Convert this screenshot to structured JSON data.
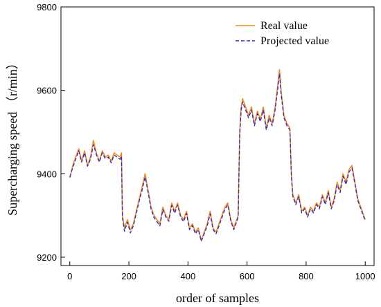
{
  "chart_data": {
    "type": "line",
    "title": "",
    "xlabel": "order of samples",
    "ylabel": "Supercharging speed （r/min）",
    "xlim": [
      -30,
      1030
    ],
    "ylim": [
      9180,
      9800
    ],
    "xticks": [
      0,
      200,
      400,
      600,
      800,
      1000
    ],
    "yticks": [
      9200,
      9400,
      9600,
      9800
    ],
    "grid": false,
    "legend_position": "top-right",
    "series": [
      {
        "name": "Real value",
        "color": "#f28a16",
        "style": "solid",
        "points": [
          [
            0,
            9390
          ],
          [
            10,
            9420
          ],
          [
            20,
            9440
          ],
          [
            30,
            9460
          ],
          [
            40,
            9430
          ],
          [
            50,
            9455
          ],
          [
            60,
            9420
          ],
          [
            70,
            9440
          ],
          [
            80,
            9480
          ],
          [
            90,
            9450
          ],
          [
            100,
            9430
          ],
          [
            110,
            9455
          ],
          [
            120,
            9440
          ],
          [
            130,
            9445
          ],
          [
            140,
            9430
          ],
          [
            150,
            9450
          ],
          [
            160,
            9445
          ],
          [
            170,
            9440
          ],
          [
            175,
            9450
          ],
          [
            178,
            9300
          ],
          [
            185,
            9270
          ],
          [
            195,
            9290
          ],
          [
            205,
            9265
          ],
          [
            215,
            9280
          ],
          [
            225,
            9310
          ],
          [
            235,
            9340
          ],
          [
            245,
            9370
          ],
          [
            255,
            9400
          ],
          [
            265,
            9360
          ],
          [
            275,
            9320
          ],
          [
            285,
            9300
          ],
          [
            295,
            9290
          ],
          [
            305,
            9280
          ],
          [
            315,
            9320
          ],
          [
            325,
            9300
          ],
          [
            335,
            9290
          ],
          [
            345,
            9330
          ],
          [
            355,
            9310
          ],
          [
            365,
            9330
          ],
          [
            375,
            9300
          ],
          [
            385,
            9290
          ],
          [
            395,
            9310
          ],
          [
            405,
            9270
          ],
          [
            415,
            9280
          ],
          [
            425,
            9260
          ],
          [
            435,
            9270
          ],
          [
            445,
            9240
          ],
          [
            455,
            9260
          ],
          [
            465,
            9280
          ],
          [
            475,
            9310
          ],
          [
            485,
            9270
          ],
          [
            495,
            9260
          ],
          [
            505,
            9280
          ],
          [
            515,
            9300
          ],
          [
            525,
            9320
          ],
          [
            535,
            9330
          ],
          [
            545,
            9290
          ],
          [
            555,
            9270
          ],
          [
            565,
            9290
          ],
          [
            570,
            9300
          ],
          [
            575,
            9500
          ],
          [
            580,
            9560
          ],
          [
            585,
            9580
          ],
          [
            595,
            9560
          ],
          [
            605,
            9540
          ],
          [
            615,
            9560
          ],
          [
            625,
            9520
          ],
          [
            635,
            9550
          ],
          [
            645,
            9530
          ],
          [
            655,
            9560
          ],
          [
            665,
            9510
          ],
          [
            675,
            9540
          ],
          [
            685,
            9520
          ],
          [
            695,
            9560
          ],
          [
            705,
            9620
          ],
          [
            710,
            9650
          ],
          [
            715,
            9600
          ],
          [
            725,
            9540
          ],
          [
            735,
            9520
          ],
          [
            745,
            9510
          ],
          [
            750,
            9400
          ],
          [
            755,
            9350
          ],
          [
            765,
            9330
          ],
          [
            775,
            9350
          ],
          [
            785,
            9310
          ],
          [
            795,
            9320
          ],
          [
            805,
            9300
          ],
          [
            815,
            9320
          ],
          [
            825,
            9310
          ],
          [
            835,
            9330
          ],
          [
            845,
            9320
          ],
          [
            855,
            9350
          ],
          [
            865,
            9330
          ],
          [
            875,
            9360
          ],
          [
            885,
            9320
          ],
          [
            895,
            9340
          ],
          [
            905,
            9380
          ],
          [
            915,
            9360
          ],
          [
            925,
            9400
          ],
          [
            935,
            9380
          ],
          [
            945,
            9410
          ],
          [
            955,
            9420
          ],
          [
            965,
            9380
          ],
          [
            975,
            9340
          ],
          [
            985,
            9320
          ],
          [
            995,
            9300
          ],
          [
            1000,
            9290
          ]
        ]
      },
      {
        "name": "Projected value",
        "color": "#2323d8",
        "style": "dashed",
        "points": [
          [
            0,
            9392
          ],
          [
            10,
            9415
          ],
          [
            20,
            9435
          ],
          [
            30,
            9455
          ],
          [
            40,
            9428
          ],
          [
            50,
            9450
          ],
          [
            60,
            9418
          ],
          [
            70,
            9435
          ],
          [
            80,
            9470
          ],
          [
            90,
            9445
          ],
          [
            100,
            9428
          ],
          [
            110,
            9450
          ],
          [
            120,
            9436
          ],
          [
            130,
            9440
          ],
          [
            140,
            9426
          ],
          [
            150,
            9445
          ],
          [
            160,
            9440
          ],
          [
            170,
            9435
          ],
          [
            175,
            9442
          ],
          [
            178,
            9295
          ],
          [
            185,
            9262
          ],
          [
            195,
            9284
          ],
          [
            205,
            9258
          ],
          [
            215,
            9275
          ],
          [
            225,
            9305
          ],
          [
            235,
            9335
          ],
          [
            245,
            9362
          ],
          [
            255,
            9392
          ],
          [
            265,
            9355
          ],
          [
            275,
            9315
          ],
          [
            285,
            9295
          ],
          [
            295,
            9285
          ],
          [
            305,
            9275
          ],
          [
            315,
            9314
          ],
          [
            325,
            9296
          ],
          [
            335,
            9286
          ],
          [
            345,
            9324
          ],
          [
            355,
            9305
          ],
          [
            365,
            9325
          ],
          [
            375,
            9296
          ],
          [
            385,
            9285
          ],
          [
            395,
            9305
          ],
          [
            405,
            9266
          ],
          [
            415,
            9276
          ],
          [
            425,
            9256
          ],
          [
            435,
            9266
          ],
          [
            445,
            9238
          ],
          [
            455,
            9256
          ],
          [
            465,
            9275
          ],
          [
            475,
            9304
          ],
          [
            485,
            9266
          ],
          [
            495,
            9256
          ],
          [
            505,
            9275
          ],
          [
            515,
            9295
          ],
          [
            525,
            9315
          ],
          [
            535,
            9325
          ],
          [
            545,
            9286
          ],
          [
            555,
            9266
          ],
          [
            565,
            9285
          ],
          [
            570,
            9296
          ],
          [
            575,
            9490
          ],
          [
            580,
            9552
          ],
          [
            585,
            9572
          ],
          [
            595,
            9553
          ],
          [
            605,
            9534
          ],
          [
            615,
            9553
          ],
          [
            625,
            9515
          ],
          [
            635,
            9544
          ],
          [
            645,
            9525
          ],
          [
            655,
            9553
          ],
          [
            665,
            9505
          ],
          [
            675,
            9534
          ],
          [
            685,
            9515
          ],
          [
            695,
            9553
          ],
          [
            705,
            9610
          ],
          [
            710,
            9640
          ],
          [
            715,
            9592
          ],
          [
            725,
            9534
          ],
          [
            735,
            9515
          ],
          [
            745,
            9505
          ],
          [
            750,
            9396
          ],
          [
            755,
            9345
          ],
          [
            765,
            9326
          ],
          [
            775,
            9345
          ],
          [
            785,
            9306
          ],
          [
            795,
            9316
          ],
          [
            805,
            9296
          ],
          [
            815,
            9316
          ],
          [
            825,
            9306
          ],
          [
            835,
            9326
          ],
          [
            845,
            9316
          ],
          [
            855,
            9345
          ],
          [
            865,
            9326
          ],
          [
            875,
            9355
          ],
          [
            885,
            9316
          ],
          [
            895,
            9335
          ],
          [
            905,
            9374
          ],
          [
            915,
            9355
          ],
          [
            925,
            9394
          ],
          [
            935,
            9374
          ],
          [
            945,
            9404
          ],
          [
            955,
            9414
          ],
          [
            965,
            9376
          ],
          [
            975,
            9336
          ],
          [
            985,
            9316
          ],
          [
            995,
            9296
          ],
          [
            1000,
            9288
          ]
        ]
      }
    ]
  }
}
